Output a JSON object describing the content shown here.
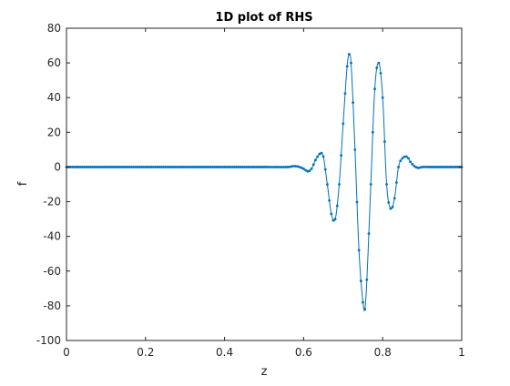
{
  "chart_data": {
    "type": "line",
    "title": "1D plot of RHS",
    "xlabel": "z",
    "ylabel": "f",
    "xlim": [
      0,
      1
    ],
    "ylim": [
      -100,
      80
    ],
    "xticks": [
      0,
      0.2,
      0.4,
      0.6,
      0.8,
      1
    ],
    "xtick_labels": [
      "0",
      "0.2",
      "0.4",
      "0.6",
      "0.8",
      "1"
    ],
    "yticks": [
      -100,
      -80,
      -60,
      -40,
      -20,
      0,
      20,
      40,
      60,
      80
    ],
    "ytick_labels": [
      "-100",
      "-80",
      "-60",
      "-40",
      "-20",
      "0",
      "20",
      "40",
      "60",
      "80"
    ],
    "grid": false,
    "color": "#0072BD",
    "marker": "dot",
    "series": [
      {
        "x": [
          0,
          0.5,
          0.56,
          0.58,
          0.6,
          0.61,
          0.62,
          0.63,
          0.64,
          0.645,
          0.65,
          0.66,
          0.67,
          0.68,
          0.69,
          0.7,
          0.71,
          0.715,
          0.72,
          0.73,
          0.74,
          0.75,
          0.755,
          0.76,
          0.77,
          0.78,
          0.79,
          0.8,
          0.81,
          0.82,
          0.83,
          0.84,
          0.85,
          0.86,
          0.865,
          0.87,
          0.88,
          0.89,
          0.9,
          0.92,
          1.0
        ],
        "y": [
          0,
          0,
          0,
          0.5,
          -1,
          -2.5,
          -1,
          4,
          7.5,
          8,
          6,
          -10,
          -27,
          -30,
          -10,
          25,
          58,
          65,
          60,
          10,
          -48,
          -78,
          -82,
          -65,
          -10,
          45,
          60,
          40,
          -10,
          -24,
          -18,
          0,
          5,
          6,
          5,
          3,
          0.5,
          -0.5,
          0,
          0,
          0
        ]
      }
    ]
  }
}
